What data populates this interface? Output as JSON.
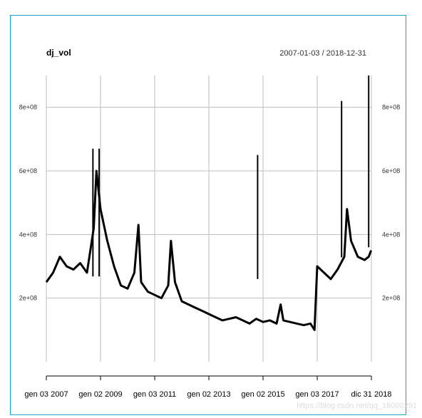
{
  "chart_data": {
    "type": "line",
    "title": "dj_vol",
    "subtitle": "2007-01-03 / 2018-12-31",
    "x_tick_labels": [
      "gen 03 2007",
      "gen 02 2009",
      "gen 03 2011",
      "gen 02 2013",
      "gen 02 2015",
      "gen 03 2017",
      "dic 31 2018"
    ],
    "x_tick_years": [
      2007.0,
      2009.0,
      2011.0,
      2013.0,
      2015.0,
      2017.0,
      2019.0
    ],
    "y_tick_labels": [
      "2e+08",
      "4e+08",
      "6e+08",
      "8e+08"
    ],
    "y_tick_values": [
      200000000,
      400000000,
      600000000,
      800000000
    ],
    "ylim": [
      0,
      900000000
    ],
    "xlim": [
      2007.0,
      2019.0
    ],
    "grid": true,
    "series": [
      {
        "color": "#000000",
        "x": [
          2007.0,
          2007.25,
          2007.5,
          2007.75,
          2008.0,
          2008.25,
          2008.5,
          2008.75,
          2008.85,
          2009.0,
          2009.25,
          2009.5,
          2009.75,
          2010.0,
          2010.25,
          2010.4,
          2010.5,
          2010.75,
          2011.0,
          2011.25,
          2011.5,
          2011.6,
          2011.75,
          2012.0,
          2012.25,
          2012.5,
          2012.75,
          2013.0,
          2013.25,
          2013.5,
          2013.75,
          2014.0,
          2014.25,
          2014.5,
          2014.75,
          2015.0,
          2015.25,
          2015.5,
          2015.65,
          2015.75,
          2016.0,
          2016.25,
          2016.5,
          2016.75,
          2016.9,
          2017.0,
          2017.25,
          2017.5,
          2017.75,
          2018.0,
          2018.1,
          2018.25,
          2018.5,
          2018.75,
          2018.9,
          2018.99
        ],
        "values": [
          250000000,
          280000000,
          330000000,
          300000000,
          290000000,
          310000000,
          280000000,
          420000000,
          600000000,
          480000000,
          380000000,
          300000000,
          240000000,
          230000000,
          280000000,
          430000000,
          250000000,
          220000000,
          210000000,
          200000000,
          240000000,
          380000000,
          250000000,
          190000000,
          180000000,
          170000000,
          160000000,
          150000000,
          140000000,
          130000000,
          135000000,
          140000000,
          130000000,
          120000000,
          135000000,
          125000000,
          130000000,
          120000000,
          180000000,
          130000000,
          125000000,
          120000000,
          115000000,
          120000000,
          100000000,
          300000000,
          280000000,
          260000000,
          290000000,
          330000000,
          480000000,
          380000000,
          330000000,
          320000000,
          330000000,
          350000000
        ]
      }
    ],
    "spikes": [
      {
        "x": 2008.72,
        "value": 670000000
      },
      {
        "x": 2008.95,
        "value": 670000000
      },
      {
        "x": 2014.8,
        "value": 650000000
      },
      {
        "x": 2017.9,
        "value": 820000000
      },
      {
        "x": 2018.9,
        "value": 900000000
      }
    ]
  },
  "watermark": "https://blog.csdn.net/qq_16000291"
}
